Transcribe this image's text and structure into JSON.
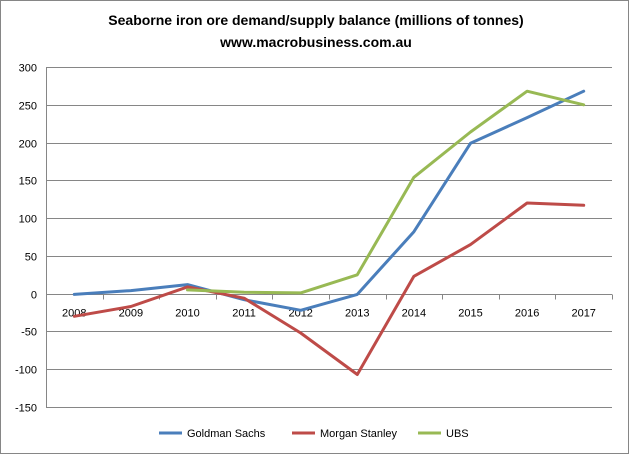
{
  "chart_data": {
    "type": "line",
    "title": "Seaborne iron ore demand/supply balance (millions of tonnes)",
    "subtitle": "www.macrobusiness.com.au",
    "xlabel": "",
    "ylabel": "",
    "categories": [
      "2008",
      "2009",
      "2010",
      "2011",
      "2012",
      "2013",
      "2014",
      "2015",
      "2016",
      "2017"
    ],
    "ylim": [
      -150,
      300
    ],
    "yticks": [
      300,
      250,
      200,
      150,
      100,
      50,
      0,
      -50,
      -100,
      -150
    ],
    "ytick_labels": [
      "300",
      "250",
      "200",
      "150",
      "100",
      "50",
      "0",
      "-50",
      "-100",
      "-150"
    ],
    "grid": true,
    "legend_position": "bottom",
    "series": [
      {
        "name": "Goldman Sachs",
        "color": "#4a7ebb",
        "values": [
          -1,
          4,
          12,
          -8,
          -22,
          -1,
          82,
          199,
          233,
          268
        ]
      },
      {
        "name": "Morgan Stanley",
        "color": "#be4b48",
        "values": [
          -30,
          -17,
          9,
          -6,
          -52,
          -107,
          23,
          65,
          120,
          117
        ]
      },
      {
        "name": "UBS",
        "color": "#98b954",
        "values": [
          null,
          null,
          5,
          2,
          1,
          25,
          154,
          214,
          268,
          250
        ]
      }
    ]
  }
}
